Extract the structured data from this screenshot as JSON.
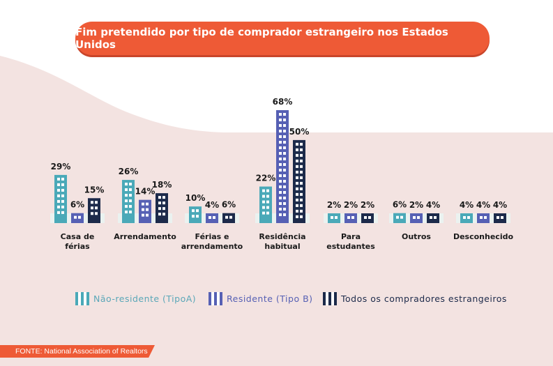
{
  "title": "Fim pretendido por tipo de comprador estrangeiro nos Estados Unidos",
  "source": "FONTE: National Association of Realtors",
  "colors": {
    "accent": "#ee5a36",
    "background_wave": "#f3e3e1",
    "series": [
      "#4aa9b8",
      "#5660b4",
      "#1c2a4a"
    ],
    "legend_text": [
      "#5aa7b8",
      "#5660b4",
      "#1c2a4a"
    ]
  },
  "chart_data": {
    "type": "bar",
    "categories": [
      [
        "Casa de",
        "férias"
      ],
      [
        "Arrendamento"
      ],
      [
        "Férias e",
        "arrendamento"
      ],
      [
        "Residência",
        "habitual"
      ],
      [
        "Para",
        "estudantes"
      ],
      [
        "Outros"
      ],
      [
        "Desconhecido"
      ]
    ],
    "series": [
      {
        "name": "Não-residente (TipoA)",
        "values": [
          29,
          26,
          10,
          22,
          2,
          6,
          4
        ]
      },
      {
        "name": "Residente (Tipo B)",
        "values": [
          6,
          14,
          4,
          68,
          2,
          2,
          4
        ]
      },
      {
        "name": "Todos os compradores estrangeiros",
        "values": [
          15,
          18,
          6,
          50,
          2,
          4,
          4
        ]
      }
    ],
    "value_suffix": "%",
    "legend_position": "bottom",
    "grid": false,
    "ylim": [
      0,
      68
    ]
  }
}
